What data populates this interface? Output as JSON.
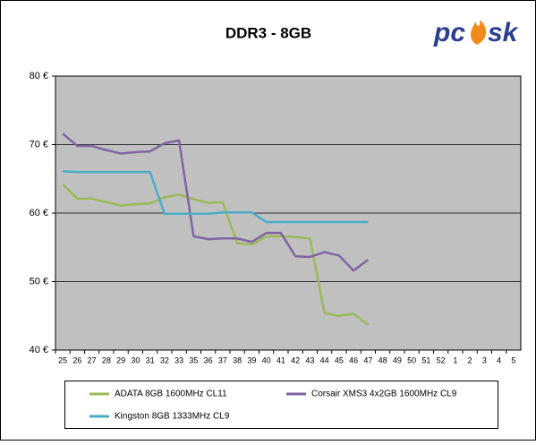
{
  "chart_data": {
    "type": "line",
    "title": "DDR3 - 8GB",
    "brand": {
      "left": "pc",
      "right": "sk"
    },
    "categories": [
      "25",
      "26",
      "27",
      "28",
      "29",
      "30",
      "31",
      "32",
      "33",
      "35",
      "36",
      "37",
      "38",
      "39",
      "40",
      "41",
      "42",
      "43",
      "44",
      "45",
      "46",
      "47",
      "48",
      "49",
      "50",
      "51",
      "52",
      "1",
      "2",
      "3",
      "4",
      "5"
    ],
    "series": [
      {
        "name": "ADATA 8GB 1600MHz CL11",
        "color": "#9bbb59",
        "values": [
          64.2,
          62.1,
          62.1,
          61.6,
          61.1,
          61.3,
          61.4,
          62.3,
          62.7,
          62.0,
          61.5,
          61.6,
          55.6,
          55.4,
          56.6,
          56.6,
          56.5,
          56.3,
          45.4,
          45.0,
          45.3,
          43.7,
          null,
          null,
          null,
          null,
          null,
          null,
          null,
          null,
          null,
          null
        ]
      },
      {
        "name": "Corsair XMS3 4x2GB 1600MHz CL9",
        "color": "#8064a2",
        "values": [
          71.6,
          69.8,
          69.8,
          69.2,
          68.7,
          68.9,
          69.0,
          70.2,
          70.6,
          56.6,
          56.2,
          56.3,
          56.3,
          55.8,
          57.1,
          57.1,
          53.7,
          53.6,
          54.3,
          53.8,
          51.6,
          53.2,
          null,
          null,
          null,
          null,
          null,
          null,
          null,
          null,
          null,
          null
        ]
      },
      {
        "name": "Kingston 8GB 1333MHz CL9",
        "color": "#4bacc6",
        "values": [
          66.1,
          66.0,
          66.0,
          66.0,
          66.0,
          66.0,
          66.0,
          59.9,
          59.9,
          59.9,
          59.9,
          60.1,
          60.1,
          60.1,
          58.7,
          58.7,
          58.7,
          58.7,
          58.7,
          58.7,
          58.7,
          58.7,
          null,
          null,
          null,
          null,
          null,
          null,
          null,
          null,
          null,
          null
        ]
      }
    ],
    "ylim": [
      40,
      80
    ],
    "yticks": [
      {
        "value": 40,
        "label": "40 €"
      },
      {
        "value": 50,
        "label": "50 €"
      },
      {
        "value": 60,
        "label": "60 €"
      },
      {
        "value": 70,
        "label": "70 €"
      },
      {
        "value": 80,
        "label": "80 €"
      }
    ],
    "grid": true
  }
}
